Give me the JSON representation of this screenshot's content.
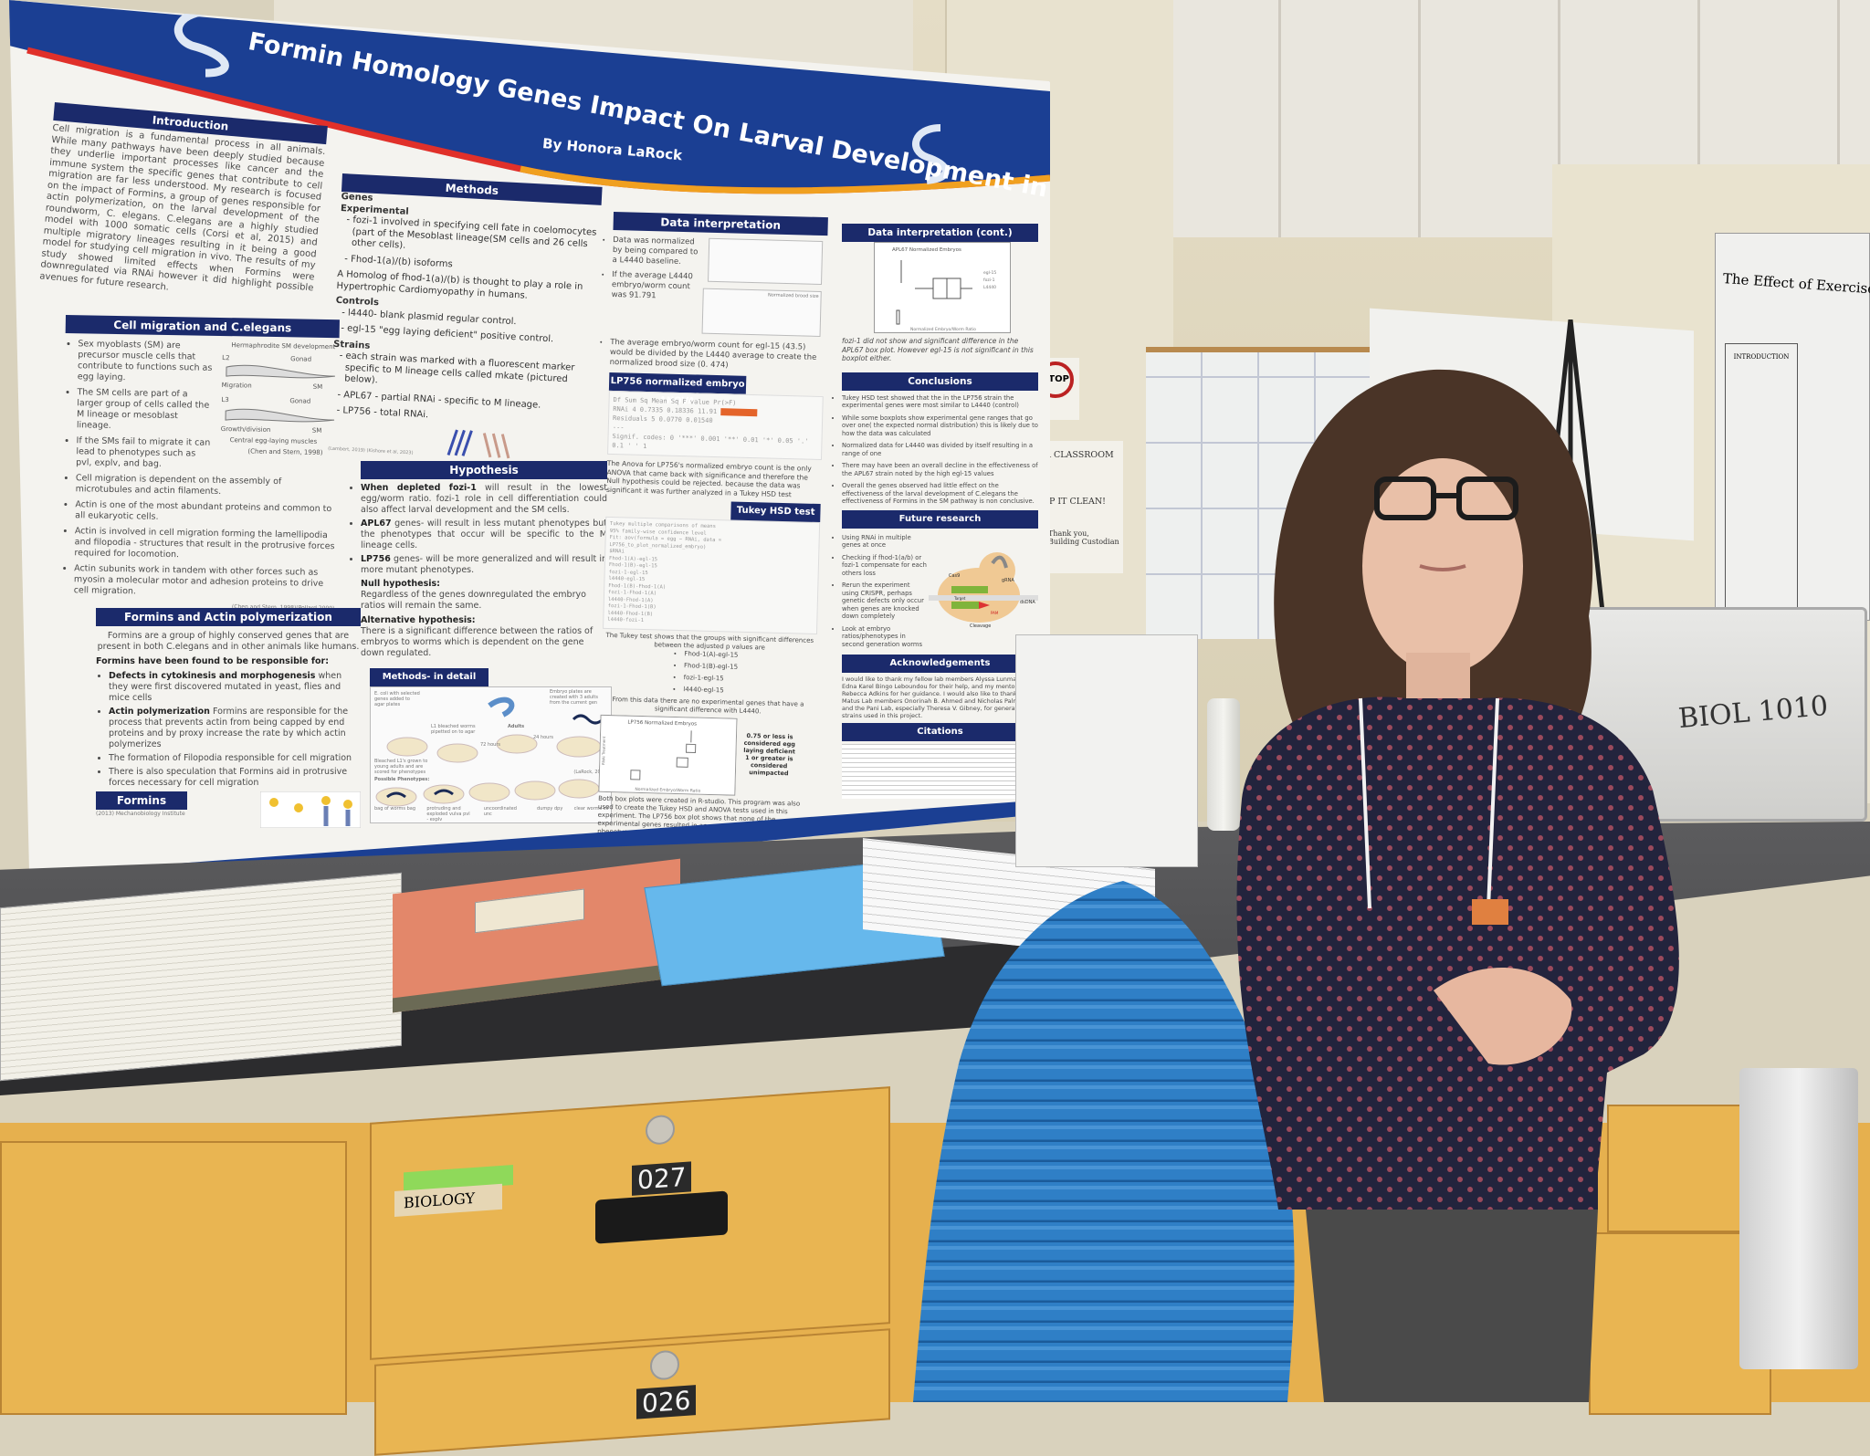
{
  "poster": {
    "title": "Formin Homology Genes Impact On Larval Development in C.elegans",
    "author": "By Honora LaRock",
    "colors": {
      "band": "#1b2a6b",
      "stripe_red": "#e0302a",
      "stripe_orange": "#f0a020"
    },
    "introduction": {
      "heading": "Introduction",
      "text": "Cell migration is a fundamental process in all animals. While many pathways have been deeply studied because they underlie important processes like cancer and the immune system the specific genes that contribute to cell migration are far less understood. My research is focused on the impact of Formins, a group of genes responsible for actin polymerization, on the larval development of the roundworm, C. elegans. C.elegans are a highly studied model with 1000 somatic cells (Corsi et al, 2015) and multiple migratory lineages resulting in it being a good model for studying cell migration in vivo. The results of my study showed limited effects when Formins were downregulated via RNAi however it did highlight possible avenues for future research."
    },
    "cell_migration": {
      "heading": "Cell migration and C.elegans",
      "bullets": [
        "Sex myoblasts (SM) are precursor muscle cells that contribute to functions such as egg laying.",
        "The SM cells are part of a larger group of cells called the M lineage or mesoblast lineage.",
        "If the SMs fail to migrate it can lead to phenotypes such as pvl, explv, and bag.",
        "Cell migration is dependent on the assembly of microtubules and actin filaments.",
        "Actin is one of the most abundant proteins and common to all eukaryotic cells.",
        "Actin is involved in cell migration forming the lamellipodia and filopodia - structures that result in the protrusive forces required for locomotion.",
        "Actin subunits work in tandem with other forces such as myosin a molecular motor and adhesion proteins to drive cell migration."
      ],
      "figure_title": "Hermaphrodite SM development",
      "figure_labels": [
        "L2",
        "Gonad",
        "Migration",
        "SM",
        "L3",
        "Gonad",
        "Growth/division",
        "SM",
        "Central egg-laying muscles"
      ],
      "figure_credit": "(Chen and Stern, 1998)",
      "credit": "(Chen and Stern, 1998)(Pollard 2009)"
    },
    "formins_actin": {
      "heading": "Formins and Actin polymerization",
      "intro": "Formins are a group of highly conserved genes that are present in both C.elegans and in other animals like humans.",
      "subheading": "Formins have been found to be responsible for:",
      "bullets": [
        {
          "b": "Defects in cytokinesis and morphogenesis",
          "t": " when they were first discovered mutated in yeast, flies and mice cells"
        },
        {
          "b": "Actin polymerization",
          "t": " Formins are responsible for the process that prevents actin from being capped by end proteins and by proxy increase the rate by which actin polymerizes"
        },
        {
          "b": "",
          "t": "The formation of Filopodia responsible for cell migration"
        },
        {
          "b": "",
          "t": "There is also speculation that Formins aid in protrusive forces necessary for cell migration"
        }
      ],
      "formins_label": "Formins",
      "credit": "(2013) Mechanobiology Institute"
    },
    "methods": {
      "heading": "Methods",
      "genes": "Genes",
      "experimental": "Experimental",
      "exp_items": [
        "fozi-1 involved in specifying cell fate in coelomocytes (part of the Mesoblast lineage(SM cells and 26 cells other cells).",
        "Fhod-1(a)/(b) isoforms"
      ],
      "homolog": "A Homolog of fhod-1(a)/(b) is thought to play a role in Hypertrophic Cardiomyopathy in humans.",
      "controls": "Controls",
      "control_items": [
        "l4440- blank plasmid regular control.",
        "egl-15 \"egg laying deficient\" positive control."
      ],
      "strains": "Strains",
      "strain_items": [
        "each strain was marked with a fluorescent marker specific to M lineage cells called mkate (pictured below).",
        "APL67 - partial RNAi - specific to M lineage.",
        "LP756 - total RNAi."
      ],
      "credit": "(Lambert, 2019) (Kishore et al, 2023)"
    },
    "hypothesis": {
      "heading": "Hypothesis",
      "bullets": [
        {
          "b": "When depleted fozi-1",
          "t": " will result in the lowest egg/worm ratio. fozi-1 role in cell differentiation could also affect larval development and the SM cells."
        },
        {
          "b": "APL67",
          "t": " genes- will result in less mutant phenotypes but the phenotypes that occur will be specific to the M lineage cells."
        },
        {
          "b": "LP756",
          "t": " genes- will be more generalized and will result in more mutant phenotypes."
        }
      ],
      "null_heading": "Null hypothesis:",
      "null_text": "Regardless of the genes downregulated the embryo ratios will remain the same.",
      "alt_heading": "Alternative hypothesis:",
      "alt_text": "There is a significant difference between the ratios of embryos to worms which is dependent on the gene down regulated."
    },
    "methods_detail": {
      "heading": "Methods- in detail",
      "labels": [
        "E. coli with selected genes added to agar plates",
        "L1 bleached worms pipetted on to agar",
        "72 hours",
        "Adults",
        "24 hours",
        "Embryo plates are created with 3 adults from the current gen",
        "Bleached L1's grown to young adults and are scored for phenotypes",
        "Possible Phenotypes:"
      ],
      "phenotypes": [
        "bag of worms bag",
        "protruding and exploded vulva pvl - explv",
        "uncoordinated unc",
        "dumpy dpy",
        "clear worms clr"
      ],
      "credit": "(LaRock, 2024)"
    },
    "data_interpretation": {
      "heading": "Data interpretation",
      "bullets": [
        "Data was normalized by being compared to a L4440 baseline.",
        "If the average L4440 embryo/worm count was 91.791",
        "The average embryo/worm count for egl-15 (43.5) would be divided by the L4440 average to create the normalized brood size (0. 474)"
      ],
      "table_label": "Normalized brood size"
    },
    "anova": {
      "heading": "LP756 normalized embryo ANOVA",
      "code": [
        "Df Sum Sq Mean Sq F value  Pr(>F)",
        "RNAi       4 0.7335 0.18336   11.91",
        "Residuals  5 0.0770 0.01540",
        "---",
        "Signif. codes:  0 '***' 0.001 '**' 0.01 '*' 0.05 '.' 0.1 ' ' 1"
      ],
      "text": "The Anova for LP756's normalized embryo count is the only ANOVA that came back with significance and therefore the Null hypothesis could be rejected. because the data was significant it was further analyzed in a Tukey HSD test"
    },
    "tukey": {
      "heading": "Tukey HSD test",
      "code": [
        "Tukey multiple comparisons of means",
        "  95% family-wise confidence level",
        "Fit: aov(formula = egg ~ RNAi, data =",
        "LP756_to_plot_normalized_embryo)",
        "$RNAi",
        "Fhod-1(A)-egl-15",
        "Fhod-1(B)-egl-15",
        "fozi-1-egl-15",
        "l4440-egl-15",
        "Fhod-1(B)-Fhod-1(A)",
        "fozi-1-Fhod-1(A)",
        "l4440-Fhod-1(A)",
        "fozi-1-Fhod-1(B)",
        "l4440-Fhod-1(B)",
        "l4440-fozi-1"
      ],
      "summary": "The Tukey test shows that the groups with significant differences between the adjusted p values are",
      "groups": [
        "Fhod-1(A)-egl-15",
        "Fhod-1(B)-egl-15",
        "fozi-1-egl-15",
        "l4440-egl-15"
      ],
      "after": "From this data there are no experimental genes that have a significant difference with L4440."
    },
    "lp756_plot": {
      "title": "LP756 Normalized Embryos",
      "xlabel": "Normalized Embryo/Worm Ratio",
      "ylabel": "RNAi Treatment",
      "note": "0.75 or less is considered egg laying deficient 1 or greater is considered unimpacted",
      "text": "Both box plots were created in R-studio. This program was also used to create the Tukey HSD and ANOVA tests used in this experiment. The LP756 box plot shows that none of the experimental genes resulted in an overall deficient embryo laying phenotype"
    },
    "data_interpretation_cont": {
      "heading": "Data interpretation (cont.)",
      "plot_title": "APL67 Normalized Embryos",
      "plot_xlabel": "Normalized Embryo/Worm Ratio",
      "legend": [
        "egl-15",
        "fozi-1",
        "L4440"
      ],
      "text": "fozi-1 did not show and significant difference in the APL67 box plot. However egl-15 is not significant in this boxplot either."
    },
    "conclusions": {
      "heading": "Conclusions",
      "bullets": [
        "Tukey HSD test showed that the in the LP756 strain the experimental genes were most similar to L4440 (control)",
        "While some boxplots show experimental gene ranges that go over one( the expected normal distribution) this is likely due to how the data was calculated",
        "Normalized data for L4440 was divided by itself resulting in a range of one",
        "There may have been an overall decline in the effectiveness of the APL67 strain noted by the high egl-15 values",
        "Overall the genes observed had little effect on the effectiveness of the larval development of C.elegans the effectiveness of Formins in the SM pathway is non conclusive."
      ]
    },
    "future": {
      "heading": "Future research",
      "bullets": [
        "Using RNAi in multiple genes at once",
        "Checking if fhod-1(a/b) or fozi-1 compensate for each others loss",
        "Rerun the experiment using CRISPR, perhaps genetic defects only occur when genes are knocked down completely",
        "Look at embryo ratios/phenotypes in second generation worms"
      ],
      "diagram_labels": [
        "Cas9",
        "gRNA",
        "Target",
        "PAM",
        "dsDNA",
        "Cleavage"
      ],
      "credit": "(Walter, 2017)"
    },
    "acknowledgements": {
      "heading": "Acknowledgements",
      "text": "I would like to thank my fellow lab members Alyssa Lunman, Edna Karel Bingo Leboundou for their help, and my mentor Dr. Rebecca Adkins for her guidance. I would also like to thank the Matus Lab members Onorinah B. Ahmed and Nicholas Palmisano and the Pani Lab, especially Theresa V. Gibney, for generating the strains used in this project."
    },
    "citations": {
      "heading": "Citations"
    }
  },
  "scene": {
    "stop_sign": "STOP",
    "classroom_sign": [
      "OUR CLASSROOM",
      "KEEP IT CLEAN!",
      "Thank you,",
      "Building Custodian"
    ],
    "drawer_numbers": [
      "027",
      "026"
    ],
    "drawer_tape_label": "BIOLOGY",
    "bin_label": "BIOL 1010",
    "other_poster_title": "The Effect of Exercise Training on M",
    "other_poster_section": "INTRODUCTION"
  }
}
